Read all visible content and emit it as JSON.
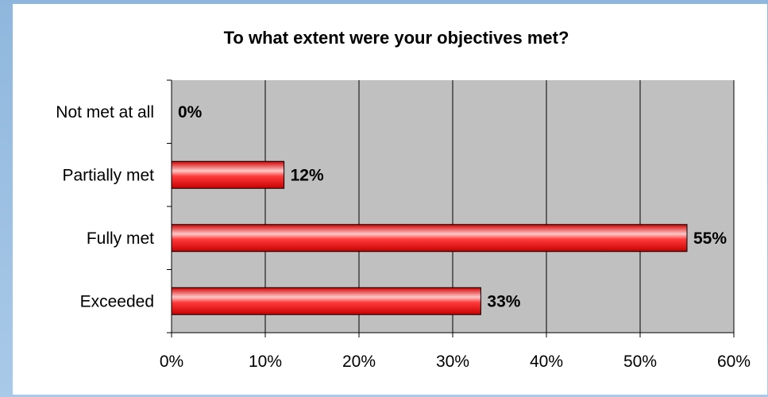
{
  "colors": {
    "plot_background": "#c0c0c0",
    "bar_fill": "#ff0000",
    "bar_highlight": "#ffc8c8",
    "page_background": "#9fc1e4",
    "panel_background": "#ffffff"
  },
  "chart_data": {
    "type": "bar",
    "orientation": "horizontal",
    "title": "To what extent were your objectives met?",
    "xlabel": "",
    "ylabel": "",
    "categories": [
      "Not met at all",
      "Partially met",
      "Fully met",
      "Exceeded"
    ],
    "values": [
      0,
      12,
      55,
      33
    ],
    "value_labels": [
      "0%",
      "12%",
      "55%",
      "33%"
    ],
    "xlim": [
      0,
      60
    ],
    "x_ticks": [
      0,
      10,
      20,
      30,
      40,
      50,
      60
    ],
    "x_tick_labels": [
      "0%",
      "10%",
      "20%",
      "30%",
      "40%",
      "50%",
      "60%"
    ],
    "grid": "vertical",
    "legend": "none"
  }
}
